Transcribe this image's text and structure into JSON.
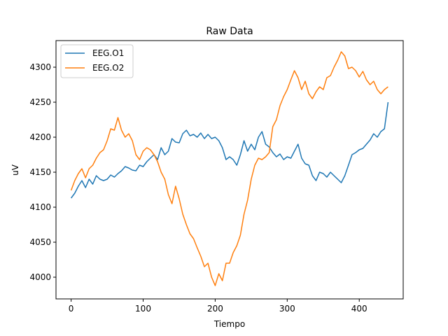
{
  "chart_data": {
    "type": "line",
    "title": "Raw Data",
    "xlabel": "Tiempo",
    "ylabel": "uV",
    "xlim": [
      -21,
      461
    ],
    "ylim": [
      3969,
      4338
    ],
    "xticks": [
      0,
      100,
      200,
      300,
      400
    ],
    "yticks": [
      4000,
      4050,
      4100,
      4150,
      4200,
      4250,
      4300
    ],
    "grid": false,
    "legend_position": "upper-left",
    "series": [
      {
        "name": "EEG.O1",
        "color": "#1f77b4",
        "x": [
          0,
          5,
          10,
          15,
          20,
          25,
          30,
          35,
          40,
          45,
          50,
          55,
          60,
          65,
          70,
          75,
          80,
          85,
          90,
          95,
          100,
          105,
          110,
          115,
          120,
          125,
          130,
          135,
          140,
          145,
          150,
          155,
          160,
          165,
          170,
          175,
          180,
          185,
          190,
          195,
          200,
          205,
          210,
          215,
          220,
          225,
          230,
          235,
          240,
          245,
          250,
          255,
          260,
          265,
          270,
          275,
          280,
          285,
          290,
          295,
          300,
          305,
          310,
          315,
          320,
          325,
          330,
          335,
          340,
          345,
          350,
          355,
          360,
          365,
          370,
          375,
          380,
          385,
          390,
          395,
          400,
          405,
          410,
          415,
          420,
          425,
          430,
          435,
          440
        ],
        "values": [
          4113,
          4120,
          4130,
          4138,
          4128,
          4140,
          4133,
          4145,
          4140,
          4138,
          4140,
          4146,
          4143,
          4148,
          4152,
          4158,
          4156,
          4153,
          4152,
          4160,
          4158,
          4165,
          4170,
          4175,
          4168,
          4185,
          4175,
          4180,
          4198,
          4193,
          4192,
          4205,
          4210,
          4202,
          4204,
          4200,
          4206,
          4198,
          4204,
          4198,
          4200,
          4195,
          4185,
          4168,
          4172,
          4168,
          4160,
          4175,
          4195,
          4180,
          4190,
          4182,
          4200,
          4208,
          4190,
          4186,
          4178,
          4172,
          4176,
          4168,
          4172,
          4170,
          4180,
          4190,
          4170,
          4162,
          4160,
          4145,
          4138,
          4150,
          4148,
          4143,
          4150,
          4145,
          4140,
          4135,
          4145,
          4160,
          4175,
          4178,
          4182,
          4184,
          4190,
          4196,
          4205,
          4200,
          4208,
          4212,
          4250
        ]
      },
      {
        "name": "EEG.O2",
        "color": "#ff7f0e",
        "x": [
          0,
          5,
          10,
          15,
          20,
          25,
          30,
          35,
          40,
          45,
          50,
          55,
          60,
          65,
          70,
          75,
          80,
          85,
          90,
          95,
          100,
          105,
          110,
          115,
          120,
          125,
          130,
          135,
          140,
          145,
          150,
          155,
          160,
          165,
          170,
          175,
          180,
          185,
          190,
          195,
          200,
          205,
          210,
          215,
          220,
          225,
          230,
          235,
          240,
          245,
          250,
          255,
          260,
          265,
          270,
          275,
          280,
          285,
          290,
          295,
          300,
          305,
          310,
          315,
          320,
          325,
          330,
          335,
          340,
          345,
          350,
          355,
          360,
          365,
          370,
          375,
          380,
          385,
          390,
          395,
          400,
          405,
          410,
          415,
          420,
          425,
          430,
          435,
          440
        ],
        "values": [
          4124,
          4138,
          4148,
          4155,
          4142,
          4155,
          4160,
          4170,
          4178,
          4182,
          4195,
          4212,
          4210,
          4228,
          4210,
          4200,
          4205,
          4195,
          4175,
          4168,
          4180,
          4185,
          4182,
          4175,
          4165,
          4150,
          4140,
          4118,
          4105,
          4130,
          4112,
          4090,
          4075,
          4062,
          4055,
          4042,
          4030,
          4015,
          4020,
          4000,
          3988,
          4005,
          3995,
          4020,
          4020,
          4035,
          4045,
          4060,
          4090,
          4110,
          4140,
          4160,
          4170,
          4168,
          4172,
          4178,
          4215,
          4225,
          4245,
          4258,
          4268,
          4282,
          4295,
          4285,
          4268,
          4280,
          4262,
          4255,
          4265,
          4272,
          4268,
          4285,
          4288,
          4300,
          4310,
          4322,
          4316,
          4298,
          4300,
          4295,
          4286,
          4294,
          4282,
          4275,
          4280,
          4268,
          4262,
          4268,
          4272
        ]
      }
    ]
  }
}
